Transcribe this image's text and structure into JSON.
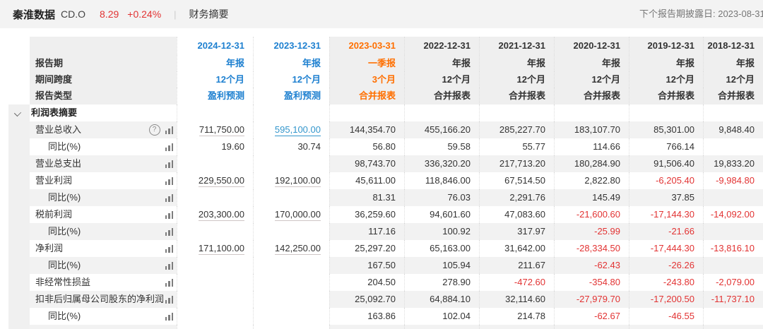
{
  "palette": {
    "blue": "#1e80d0",
    "orange": "#ff6f00",
    "red": "#e23333",
    "link_blue": "#3396cc",
    "dark": "#333333",
    "stripe": "#f2f2f2"
  },
  "topbar": {
    "stock_name": "秦淮数据",
    "ticker": "CD.O",
    "price": "8.29",
    "change": "+0.24%",
    "nav": "财务摘要",
    "next_report": "下个报告期披露日: 2023-08-31"
  },
  "table": {
    "meta_labels": {
      "period": "报告期",
      "span": "期间跨度",
      "type": "报告类型"
    },
    "columns": [
      {
        "date": "2024-12-31",
        "period": "年报",
        "span": "12个月",
        "type": "盈利预测",
        "style": "blue",
        "forecast": true
      },
      {
        "date": "2023-12-31",
        "period": "年报",
        "span": "12个月",
        "type": "盈利预测",
        "style": "blue",
        "forecast": true
      },
      {
        "date": "2023-03-31",
        "period": "一季报",
        "span": "3个月",
        "type": "合并报表",
        "style": "orange",
        "forecast": false
      },
      {
        "date": "2022-12-31",
        "period": "年报",
        "span": "12个月",
        "type": "合并报表",
        "style": "dark",
        "forecast": false
      },
      {
        "date": "2021-12-31",
        "period": "年报",
        "span": "12个月",
        "type": "合并报表",
        "style": "dark",
        "forecast": false
      },
      {
        "date": "2020-12-31",
        "period": "年报",
        "span": "12个月",
        "type": "合并报表",
        "style": "dark",
        "forecast": false
      },
      {
        "date": "2019-12-31",
        "period": "年报",
        "span": "12个月",
        "type": "合并报表",
        "style": "dark",
        "forecast": false
      },
      {
        "date": "2018-12-31",
        "period": "年报",
        "span": "12个月",
        "type": "合并报表",
        "style": "dark",
        "forecast": false
      }
    ],
    "section_title": "利润表摘要",
    "rows": [
      {
        "label": "营业总收入",
        "sub": false,
        "help": true,
        "striped": true,
        "underline": [
          "gray",
          "blue"
        ],
        "values": [
          "711,750.00",
          "595,100.00",
          "144,354.70",
          "455,166.20",
          "285,227.70",
          "183,107.70",
          "85,301.00",
          "9,848.40"
        ]
      },
      {
        "label": "同比(%)",
        "sub": true,
        "help": false,
        "striped": false,
        "underline": [],
        "values": [
          "19.60",
          "30.74",
          "56.80",
          "59.58",
          "55.77",
          "114.66",
          "766.14",
          ""
        ]
      },
      {
        "label": "营业总支出",
        "sub": false,
        "help": false,
        "striped": true,
        "underline": [],
        "values": [
          "",
          "",
          "98,743.70",
          "336,320.20",
          "217,713.20",
          "180,284.90",
          "91,506.40",
          "19,833.20"
        ]
      },
      {
        "label": "营业利润",
        "sub": false,
        "help": false,
        "striped": false,
        "underline": [
          "gray",
          "gray"
        ],
        "values": [
          "229,550.00",
          "192,100.00",
          "45,611.00",
          "118,846.00",
          "67,514.50",
          "2,822.80",
          "-6,205.40",
          "-9,984.80"
        ]
      },
      {
        "label": "同比(%)",
        "sub": true,
        "help": false,
        "striped": true,
        "underline": [],
        "values": [
          "",
          "",
          "81.31",
          "76.03",
          "2,291.76",
          "145.49",
          "37.85",
          ""
        ]
      },
      {
        "label": "税前利润",
        "sub": false,
        "help": false,
        "striped": false,
        "underline": [
          "gray",
          "gray"
        ],
        "values": [
          "203,300.00",
          "170,000.00",
          "36,259.60",
          "94,601.60",
          "47,083.60",
          "-21,600.60",
          "-17,144.30",
          "-14,092.00"
        ]
      },
      {
        "label": "同比(%)",
        "sub": true,
        "help": false,
        "striped": true,
        "underline": [],
        "values": [
          "",
          "",
          "117.16",
          "100.92",
          "317.97",
          "-25.99",
          "-21.66",
          ""
        ]
      },
      {
        "label": "净利润",
        "sub": false,
        "help": false,
        "striped": false,
        "underline": [
          "gray",
          "gray"
        ],
        "values": [
          "171,100.00",
          "142,250.00",
          "25,297.20",
          "65,163.00",
          "31,642.00",
          "-28,334.50",
          "-17,444.30",
          "-13,816.10"
        ]
      },
      {
        "label": "同比(%)",
        "sub": true,
        "help": false,
        "striped": true,
        "underline": [],
        "values": [
          "",
          "",
          "167.50",
          "105.94",
          "211.67",
          "-62.43",
          "-26.26",
          ""
        ]
      },
      {
        "label": "非经常性损益",
        "sub": false,
        "help": false,
        "striped": false,
        "underline": [],
        "values": [
          "",
          "",
          "204.50",
          "278.90",
          "-472.60",
          "-354.80",
          "-243.80",
          "-2,079.00"
        ]
      },
      {
        "label": "扣非后归属母公司股东的净利润",
        "sub": false,
        "help": false,
        "striped": true,
        "underline": [],
        "values": [
          "",
          "",
          "25,092.70",
          "64,884.10",
          "32,114.60",
          "-27,979.70",
          "-17,200.50",
          "-11,737.10"
        ]
      },
      {
        "label": "同比(%)",
        "sub": true,
        "help": false,
        "striped": false,
        "underline": [],
        "values": [
          "",
          "",
          "163.86",
          "102.04",
          "214.78",
          "-62.67",
          "-46.55",
          ""
        ]
      }
    ]
  }
}
